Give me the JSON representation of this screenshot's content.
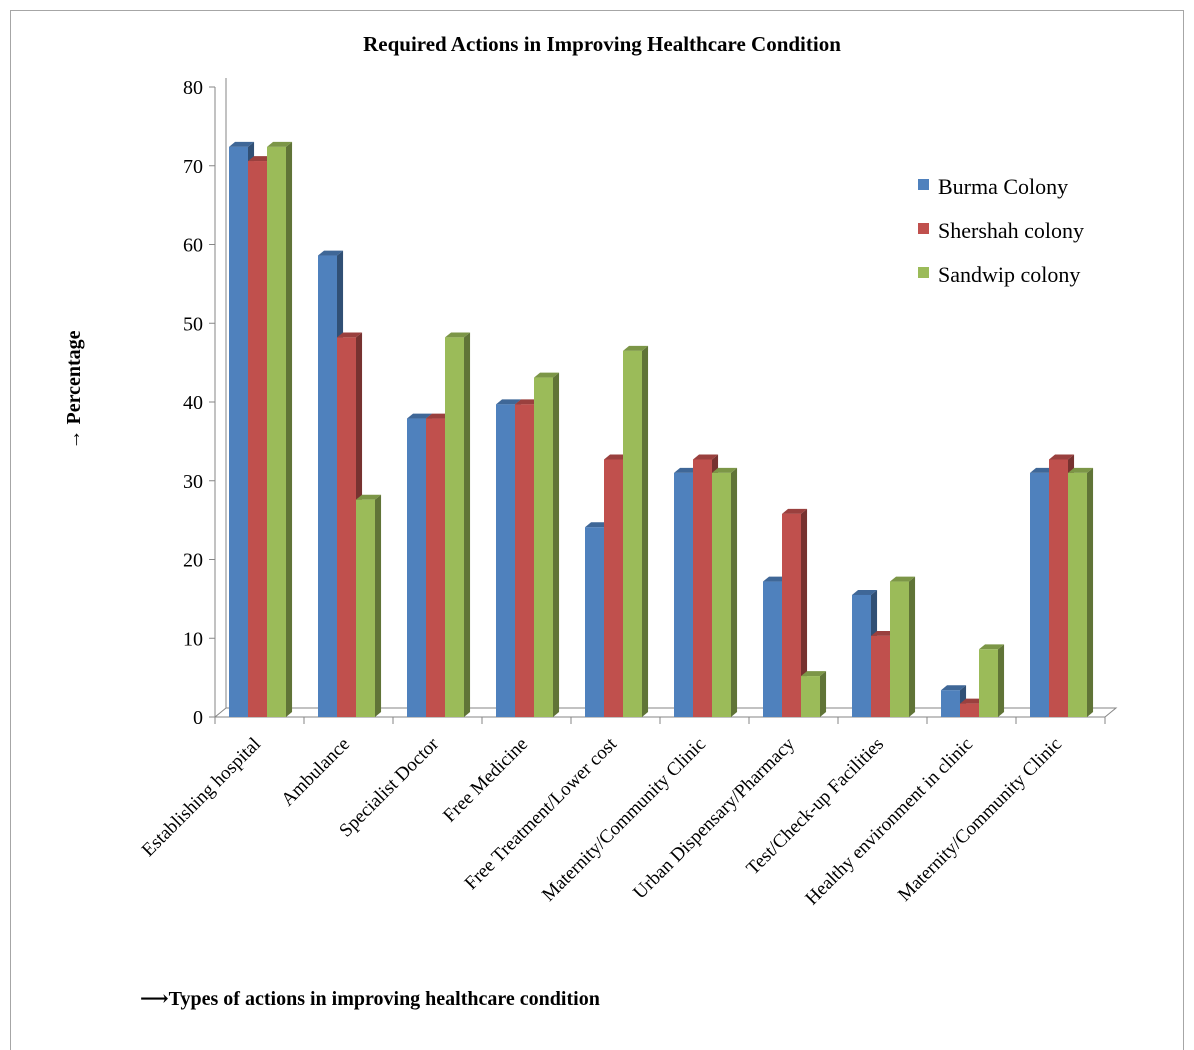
{
  "chart_data": {
    "type": "bar",
    "title": "Required Actions in Improving Healthcare Condition",
    "ylabel": "→ Percentage",
    "xlabel": "⟶Types of actions in  improving healthcare condition",
    "ylim": [
      0,
      80
    ],
    "yticks": [
      0,
      10,
      20,
      30,
      40,
      50,
      60,
      70,
      80
    ],
    "legend_position": "right",
    "categories": [
      "Establishing hospital",
      "Ambulance",
      "Specialist Doctor",
      "Free Medicine",
      "Free Treatment/Lower cost",
      "Maternity/Community Clinic",
      "Urban Dispensary/Pharmacy",
      "Test/Check-up Facilities",
      "Healthy environment in clinic",
      "Maternity/Community Clinic"
    ],
    "series": [
      {
        "name": "Burma Colony",
        "color": "#4f81bd",
        "values": [
          72.4,
          58.6,
          37.9,
          39.7,
          24.1,
          31.0,
          17.2,
          15.5,
          3.4,
          31.0
        ]
      },
      {
        "name": "Shershah colony",
        "color": "#c0504d",
        "values": [
          70.6,
          48.2,
          37.9,
          39.7,
          32.7,
          32.7,
          25.8,
          10.3,
          1.7,
          32.7
        ]
      },
      {
        "name": "Sandwip colony",
        "color": "#9bbb59",
        "values": [
          72.4,
          27.6,
          48.2,
          43.1,
          46.5,
          31.0,
          5.2,
          17.2,
          8.6,
          31.0
        ]
      }
    ]
  }
}
